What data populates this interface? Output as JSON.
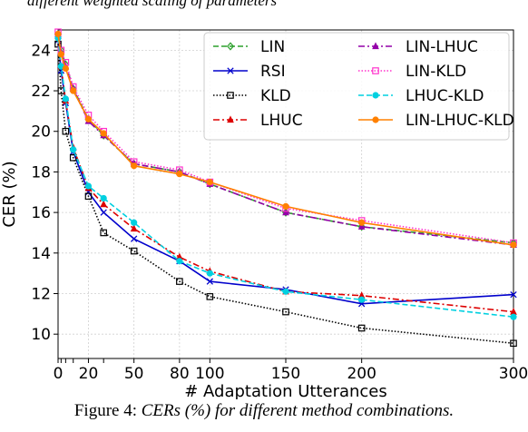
{
  "header_fragment": "different weighted scaling of parameters",
  "caption": {
    "label": "Figure 4:",
    "text": "CERs (%) for different method combinations."
  },
  "chart_data": {
    "type": "line",
    "xlabel": "# Adaptation Utterances",
    "ylabel": "CER (%)",
    "xlim": [
      0,
      300
    ],
    "ylim": [
      8.8,
      25.0
    ],
    "xticks": [
      0,
      20,
      50,
      80,
      100,
      150,
      200,
      300
    ],
    "yticks": [
      10,
      12,
      14,
      16,
      18,
      20,
      22,
      24
    ],
    "grid": true,
    "legend_position": "top-right",
    "series": [
      {
        "name": "LIN",
        "color": "#2ca02c",
        "dash": "6,3",
        "marker": "diamond",
        "x": [
          0,
          2,
          5,
          10,
          20,
          30,
          50,
          80,
          100,
          150,
          200,
          300
        ],
        "y": [
          24.8,
          24.0,
          23.3,
          22.1,
          20.6,
          19.8,
          18.4,
          18.0,
          17.4,
          16.0,
          15.3,
          14.5
        ]
      },
      {
        "name": "RSI",
        "color": "#0000cc",
        "dash": "",
        "marker": "x",
        "x": [
          0,
          2,
          5,
          10,
          20,
          30,
          50,
          80,
          100,
          150,
          200,
          300
        ],
        "y": [
          24.5,
          23.0,
          21.4,
          19.0,
          17.0,
          16.0,
          14.7,
          13.6,
          12.6,
          12.2,
          11.5,
          11.95
        ]
      },
      {
        "name": "KLD",
        "color": "#000000",
        "dash": "1.5,2",
        "marker": "square",
        "x": [
          0,
          2,
          5,
          10,
          20,
          30,
          50,
          80,
          100,
          150,
          200,
          300
        ],
        "y": [
          24.3,
          22.0,
          20.0,
          18.7,
          16.8,
          15.0,
          14.1,
          12.6,
          11.85,
          11.1,
          10.3,
          9.55
        ]
      },
      {
        "name": "LHUC",
        "color": "#dd0000",
        "dash": "7,3,2,3",
        "marker": "triangle",
        "x": [
          0,
          2,
          5,
          10,
          20,
          30,
          50,
          80,
          100,
          150,
          200,
          300
        ],
        "y": [
          24.7,
          23.2,
          21.5,
          19.2,
          17.2,
          16.4,
          15.2,
          13.8,
          13.1,
          12.1,
          11.9,
          11.1
        ]
      },
      {
        "name": "LIN-LHUC",
        "color": "#9400a8",
        "dash": "7,3,2,3",
        "marker": "triangle",
        "x": [
          0,
          2,
          5,
          10,
          20,
          30,
          50,
          80,
          100,
          150,
          200,
          300
        ],
        "y": [
          24.8,
          23.9,
          23.2,
          22.1,
          20.5,
          19.8,
          18.4,
          18.0,
          17.4,
          16.0,
          15.3,
          14.4
        ]
      },
      {
        "name": "LIN-KLD",
        "color": "#ff33cc",
        "dash": "1.5,2",
        "marker": "square",
        "x": [
          0,
          2,
          5,
          10,
          20,
          30,
          50,
          80,
          100,
          150,
          200,
          300
        ],
        "y": [
          24.9,
          24.0,
          23.4,
          22.2,
          20.8,
          20.0,
          18.5,
          18.1,
          17.5,
          16.2,
          15.6,
          14.5
        ]
      },
      {
        "name": "LHUC-KLD",
        "color": "#00d0e0",
        "dash": "6,3",
        "marker": "circle",
        "x": [
          0,
          2,
          5,
          10,
          20,
          30,
          50,
          80,
          100,
          150,
          200,
          300
        ],
        "y": [
          24.6,
          23.2,
          21.6,
          19.1,
          17.3,
          16.7,
          15.5,
          13.6,
          13.0,
          12.1,
          11.7,
          10.85
        ]
      },
      {
        "name": "LIN-LHUC-KLD",
        "color": "#ff8000",
        "dash": "",
        "marker": "circle",
        "x": [
          0,
          2,
          5,
          10,
          20,
          30,
          50,
          80,
          100,
          150,
          200,
          300
        ],
        "y": [
          24.8,
          23.8,
          23.1,
          22.0,
          20.6,
          19.9,
          18.3,
          17.9,
          17.5,
          16.3,
          15.5,
          14.4
        ]
      }
    ]
  }
}
